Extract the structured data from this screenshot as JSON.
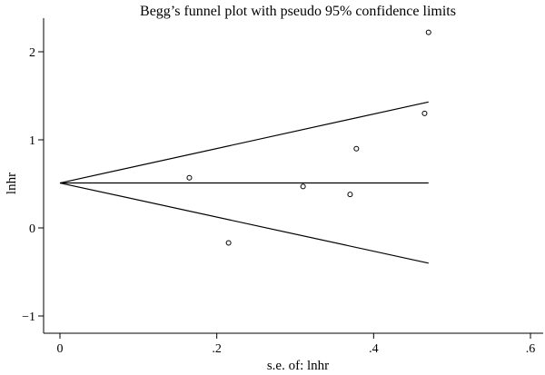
{
  "chart_data": {
    "type": "scatter",
    "title": "Begg’s funnel plot with pseudo 95% confidence limits",
    "xlabel": "s.e. of: lnhr",
    "ylabel": "lnhr",
    "xlim": [
      0,
      0.6
    ],
    "ylim": [
      -1,
      2.2
    ],
    "x_ticks": [
      0,
      0.2,
      0.4,
      0.6
    ],
    "x_tick_labels": [
      "0",
      ".2",
      ".4",
      ".6"
    ],
    "y_ticks": [
      -1,
      0,
      1,
      2
    ],
    "y_tick_labels": [
      "−1",
      "0",
      "1",
      "2"
    ],
    "grid": false,
    "points": [
      {
        "x": 0.165,
        "y": 0.57
      },
      {
        "x": 0.215,
        "y": -0.17
      },
      {
        "x": 0.31,
        "y": 0.47
      },
      {
        "x": 0.37,
        "y": 0.38
      },
      {
        "x": 0.378,
        "y": 0.9
      },
      {
        "x": 0.465,
        "y": 1.3
      },
      {
        "x": 0.47,
        "y": 2.22
      }
    ],
    "pooled_estimate": 0.51,
    "confidence_limits": {
      "x_max": 0.47,
      "upper_at_x_max": 1.43,
      "lower_at_x_max": -0.4
    }
  }
}
